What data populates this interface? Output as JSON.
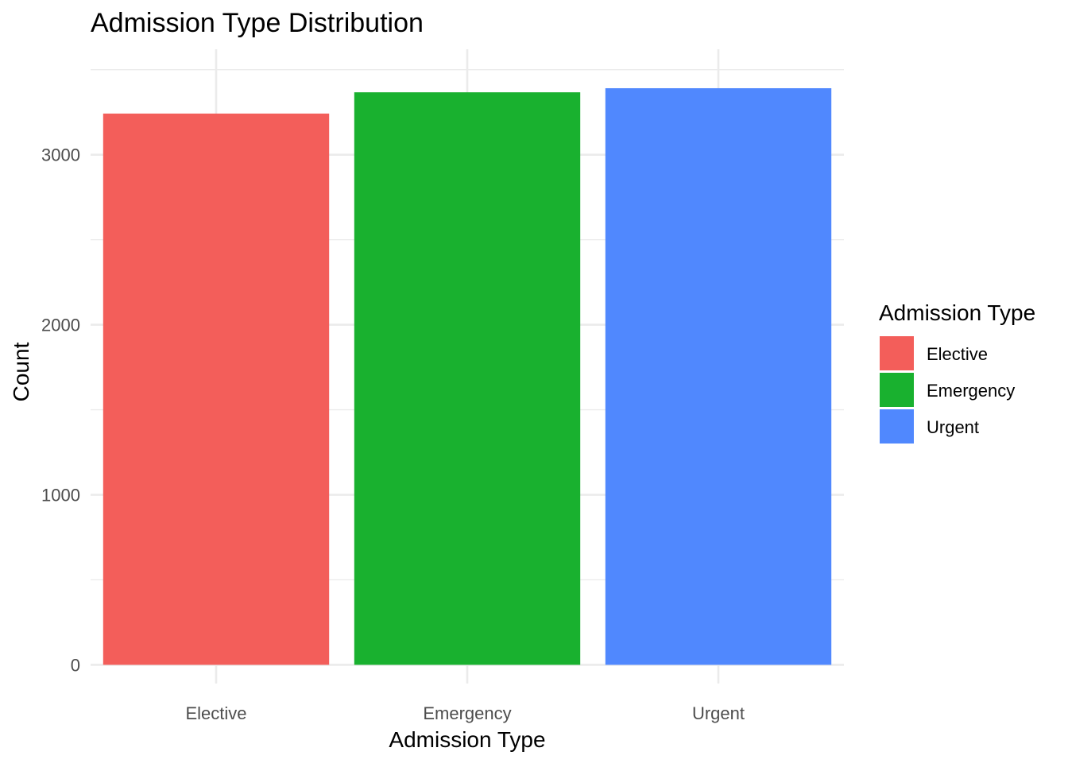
{
  "chart_data": {
    "type": "bar",
    "title": "Admission Type Distribution",
    "xlabel": "Admission Type",
    "ylabel": "Count",
    "categories": [
      "Elective",
      "Emergency",
      "Urgent"
    ],
    "values": [
      3242,
      3367,
      3391
    ],
    "ylim": [
      -110,
      3620
    ],
    "yticks": [
      0,
      1000,
      2000,
      3000
    ],
    "yticks_minor": [
      500,
      1500,
      2500,
      3500
    ],
    "ytick_labels": [
      "0",
      "1000",
      "2000",
      "3000"
    ],
    "grid": true,
    "colors": [
      "#F35E5A",
      "#19B12F",
      "#5088FE"
    ],
    "legend": {
      "title": "Admission Type",
      "placement": "right",
      "items": [
        "Elective",
        "Emergency",
        "Urgent"
      ]
    }
  }
}
